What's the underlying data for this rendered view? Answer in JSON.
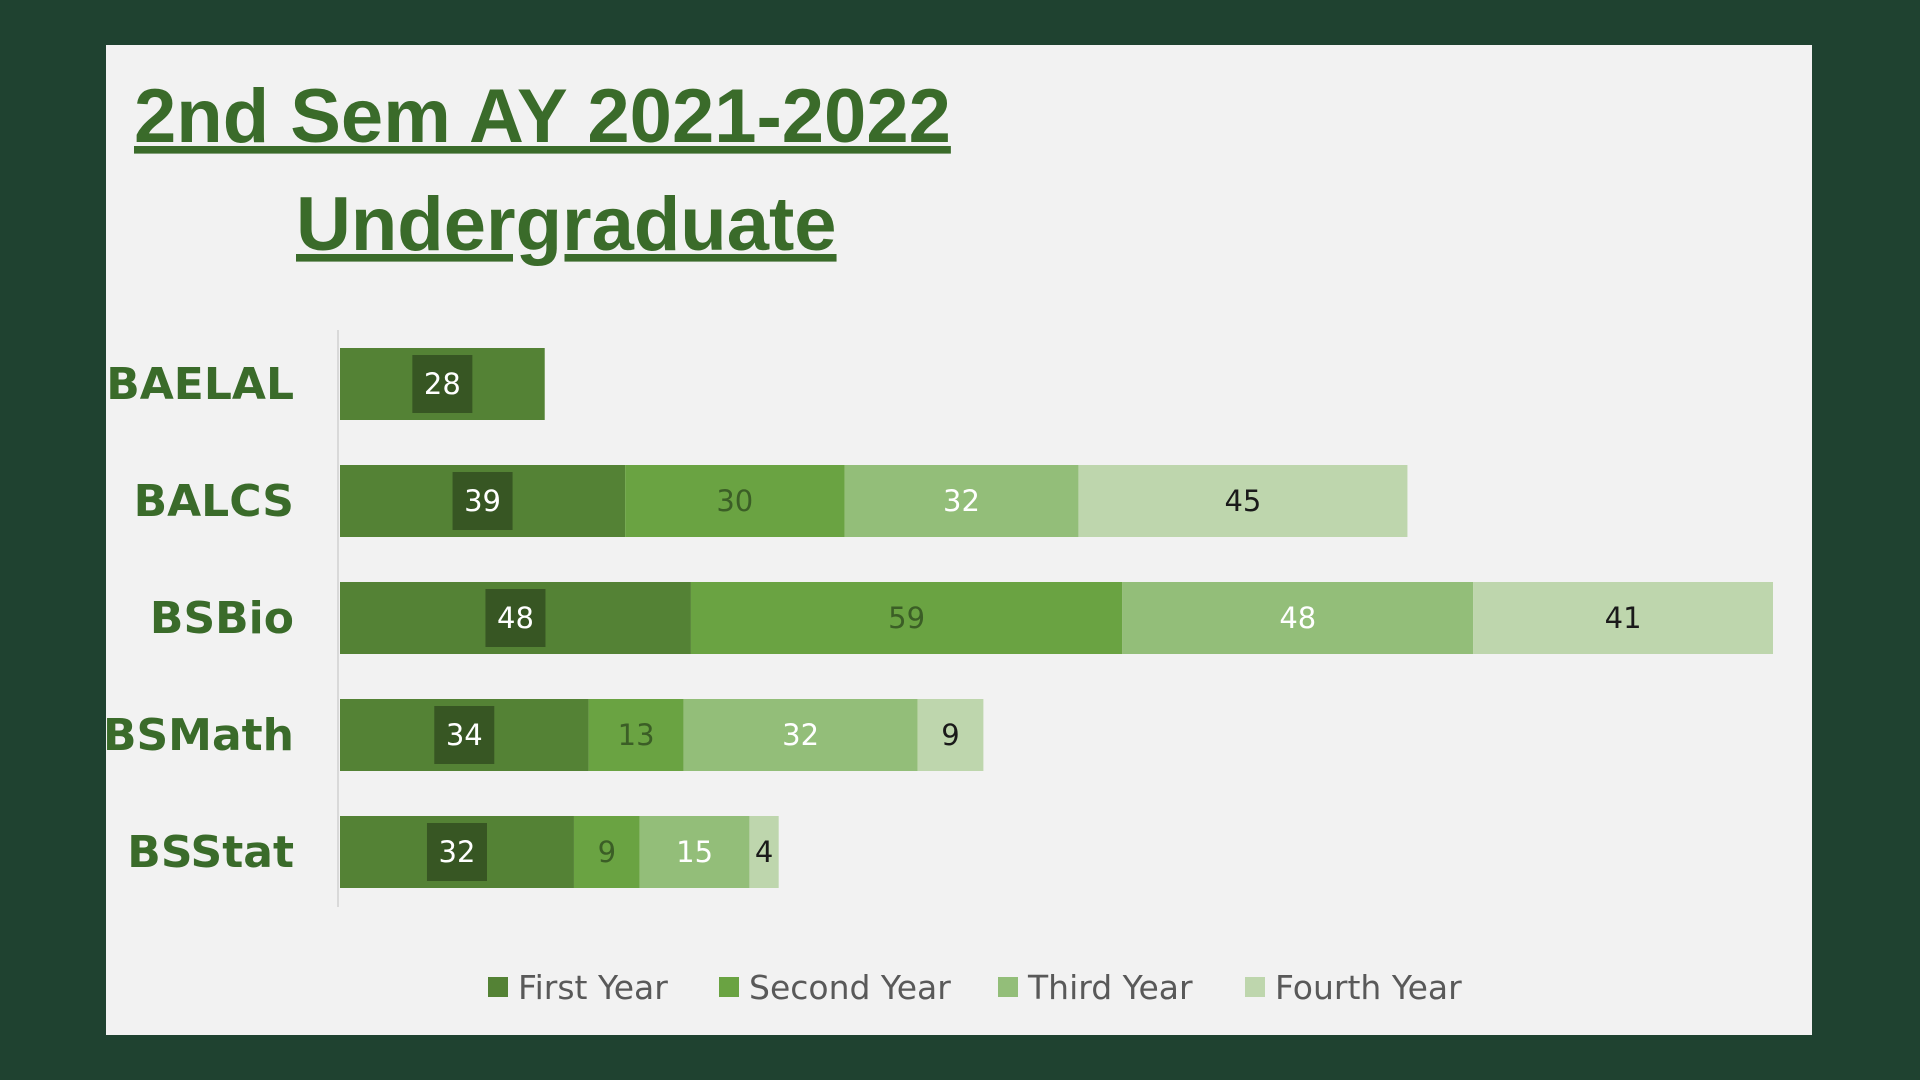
{
  "chart_data": {
    "type": "bar",
    "orientation": "horizontal",
    "stacked": true,
    "title_line1": "2nd Sem AY 2021-2022",
    "title_line2": "Undergraduate",
    "categories": [
      "BAELAL",
      "BALCS",
      "BSBio",
      "BSMath",
      "BSStat"
    ],
    "series": [
      {
        "name": "First Year",
        "values": [
          28,
          39,
          48,
          34,
          32
        ],
        "color": "#548235",
        "label_box": "#375623",
        "label_color": "#ffffff"
      },
      {
        "name": "Second Year",
        "values": [
          null,
          30,
          59,
          13,
          9
        ],
        "color": "#6aa342",
        "label_box": null,
        "label_color": "#3b5e26"
      },
      {
        "name": "Third Year",
        "values": [
          null,
          32,
          48,
          32,
          15
        ],
        "color": "#93be79",
        "label_box": null,
        "label_color": "#ffffff"
      },
      {
        "name": "Fourth Year",
        "values": [
          null,
          45,
          41,
          9,
          4
        ],
        "color": "#bed6ad",
        "label_box": null,
        "label_color": "#1a1a1a"
      }
    ],
    "xlim": [
      0,
      196
    ],
    "grid": false,
    "legend_position": "bottom"
  }
}
